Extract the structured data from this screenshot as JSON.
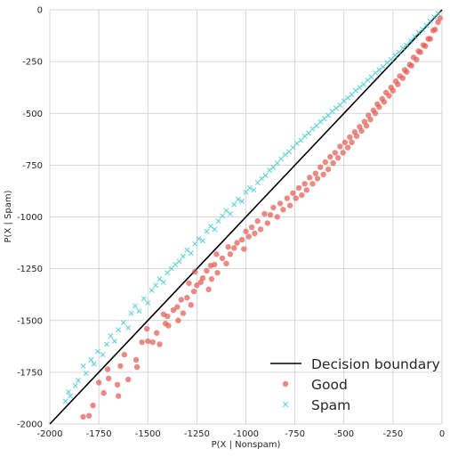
{
  "chart_data": {
    "type": "scatter",
    "title": "",
    "xlabel": "P(X | Nonspam)",
    "ylabel": "P(X | Spam)",
    "xlim": [
      -2000,
      0
    ],
    "ylim": [
      -2000,
      0
    ],
    "x_ticks": [
      -2000,
      -1750,
      -1500,
      -1250,
      -1000,
      -750,
      -500,
      -250,
      0
    ],
    "y_ticks": [
      -2000,
      -1750,
      -1500,
      -1250,
      -1000,
      -750,
      -500,
      -250,
      0
    ],
    "grid": true,
    "legend_position": "lower-right",
    "colors": {
      "good": "#e2584e",
      "spam": "#4cc9d4",
      "boundary": "#000000",
      "grid": "#cccccc"
    },
    "boundary": {
      "name": "Decision boundary",
      "x": [
        -2000,
        0
      ],
      "y": [
        -2000,
        0
      ]
    },
    "series": [
      {
        "name": "Good",
        "marker": "circle",
        "points": [
          [
            -1830,
            -1965
          ],
          [
            -1800,
            -1960
          ],
          [
            -1780,
            -1910
          ],
          [
            -1750,
            -1800
          ],
          [
            -1725,
            -1850
          ],
          [
            -1705,
            -1735
          ],
          [
            -1700,
            -1780
          ],
          [
            -1655,
            -1810
          ],
          [
            -1650,
            -1865
          ],
          [
            -1640,
            -1720
          ],
          [
            -1620,
            -1665
          ],
          [
            -1600,
            -1785
          ],
          [
            -1560,
            -1690
          ],
          [
            -1555,
            -1725
          ],
          [
            -1530,
            -1605
          ],
          [
            -1505,
            -1540
          ],
          [
            -1500,
            -1600
          ],
          [
            -1475,
            -1605
          ],
          [
            -1455,
            -1560
          ],
          [
            -1440,
            -1615
          ],
          [
            -1420,
            -1470
          ],
          [
            -1410,
            -1515
          ],
          [
            -1400,
            -1480
          ],
          [
            -1395,
            -1525
          ],
          [
            -1370,
            -1450
          ],
          [
            -1350,
            -1435
          ],
          [
            -1345,
            -1500
          ],
          [
            -1330,
            -1400
          ],
          [
            -1320,
            -1465
          ],
          [
            -1300,
            -1390
          ],
          [
            -1290,
            -1320
          ],
          [
            -1280,
            -1425
          ],
          [
            -1265,
            -1360
          ],
          [
            -1260,
            -1265
          ],
          [
            -1250,
            -1330
          ],
          [
            -1230,
            -1315
          ],
          [
            -1220,
            -1295
          ],
          [
            -1200,
            -1260
          ],
          [
            -1190,
            -1350
          ],
          [
            -1180,
            -1235
          ],
          [
            -1175,
            -1300
          ],
          [
            -1160,
            -1230
          ],
          [
            -1150,
            -1180
          ],
          [
            -1145,
            -1270
          ],
          [
            -1120,
            -1200
          ],
          [
            -1100,
            -1225
          ],
          [
            -1090,
            -1145
          ],
          [
            -1080,
            -1180
          ],
          [
            -1060,
            -1150
          ],
          [
            -1045,
            -1125
          ],
          [
            -1020,
            -1110
          ],
          [
            -1010,
            -1155
          ],
          [
            -1000,
            -1070
          ],
          [
            -985,
            -1095
          ],
          [
            -970,
            -1050
          ],
          [
            -955,
            -1080
          ],
          [
            -940,
            -1020
          ],
          [
            -925,
            -1060
          ],
          [
            -905,
            -985
          ],
          [
            -890,
            -1030
          ],
          [
            -875,
            -990
          ],
          [
            -860,
            -955
          ],
          [
            -840,
            -1000
          ],
          [
            -825,
            -935
          ],
          [
            -810,
            -965
          ],
          [
            -790,
            -910
          ],
          [
            -775,
            -945
          ],
          [
            -760,
            -885
          ],
          [
            -745,
            -910
          ],
          [
            -730,
            -860
          ],
          [
            -715,
            -895
          ],
          [
            -700,
            -840
          ],
          [
            -690,
            -870
          ],
          [
            -675,
            -810
          ],
          [
            -660,
            -840
          ],
          [
            -645,
            -790
          ],
          [
            -635,
            -815
          ],
          [
            -620,
            -760
          ],
          [
            -605,
            -795
          ],
          [
            -595,
            -735
          ],
          [
            -580,
            -770
          ],
          [
            -570,
            -710
          ],
          [
            -555,
            -740
          ],
          [
            -545,
            -690
          ],
          [
            -530,
            -715
          ],
          [
            -520,
            -660
          ],
          [
            -505,
            -690
          ],
          [
            -495,
            -640
          ],
          [
            -480,
            -665
          ],
          [
            -470,
            -615
          ],
          [
            -460,
            -640
          ],
          [
            -445,
            -590
          ],
          [
            -435,
            -610
          ],
          [
            -420,
            -565
          ],
          [
            -410,
            -585
          ],
          [
            -395,
            -540
          ],
          [
            -385,
            -560
          ],
          [
            -375,
            -510
          ],
          [
            -365,
            -530
          ],
          [
            -350,
            -485
          ],
          [
            -340,
            -500
          ],
          [
            -330,
            -455
          ],
          [
            -320,
            -470
          ],
          [
            -305,
            -430
          ],
          [
            -295,
            -445
          ],
          [
            -285,
            -400
          ],
          [
            -270,
            -415
          ],
          [
            -260,
            -375
          ],
          [
            -250,
            -390
          ],
          [
            -235,
            -345
          ],
          [
            -225,
            -360
          ],
          [
            -215,
            -320
          ],
          [
            -200,
            -330
          ],
          [
            -190,
            -290
          ],
          [
            -180,
            -300
          ],
          [
            -165,
            -265
          ],
          [
            -155,
            -270
          ],
          [
            -145,
            -230
          ],
          [
            -130,
            -240
          ],
          [
            -120,
            -200
          ],
          [
            -110,
            -205
          ],
          [
            -95,
            -170
          ],
          [
            -85,
            -175
          ],
          [
            -70,
            -140
          ],
          [
            -60,
            -140
          ],
          [
            -45,
            -100
          ],
          [
            -35,
            -95
          ],
          [
            -20,
            -60
          ],
          [
            -10,
            -40
          ]
        ]
      },
      {
        "name": "Spam",
        "marker": "x",
        "points": [
          [
            -1920,
            -1890
          ],
          [
            -1905,
            -1845
          ],
          [
            -1895,
            -1865
          ],
          [
            -1870,
            -1815
          ],
          [
            -1855,
            -1790
          ],
          [
            -1830,
            -1720
          ],
          [
            -1815,
            -1755
          ],
          [
            -1790,
            -1690
          ],
          [
            -1775,
            -1710
          ],
          [
            -1755,
            -1650
          ],
          [
            -1730,
            -1665
          ],
          [
            -1710,
            -1615
          ],
          [
            -1690,
            -1575
          ],
          [
            -1670,
            -1600
          ],
          [
            -1650,
            -1545
          ],
          [
            -1625,
            -1510
          ],
          [
            -1600,
            -1535
          ],
          [
            -1585,
            -1465
          ],
          [
            -1565,
            -1430
          ],
          [
            -1545,
            -1455
          ],
          [
            -1520,
            -1395
          ],
          [
            -1500,
            -1415
          ],
          [
            -1480,
            -1355
          ],
          [
            -1460,
            -1330
          ],
          [
            -1440,
            -1300
          ],
          [
            -1420,
            -1315
          ],
          [
            -1400,
            -1270
          ],
          [
            -1380,
            -1250
          ],
          [
            -1360,
            -1230
          ],
          [
            -1340,
            -1215
          ],
          [
            -1320,
            -1190
          ],
          [
            -1300,
            -1160
          ],
          [
            -1280,
            -1175
          ],
          [
            -1260,
            -1130
          ],
          [
            -1240,
            -1105
          ],
          [
            -1220,
            -1115
          ],
          [
            -1200,
            -1070
          ],
          [
            -1180,
            -1045
          ],
          [
            -1160,
            -1060
          ],
          [
            -1140,
            -1020
          ],
          [
            -1120,
            -995
          ],
          [
            -1100,
            -970
          ],
          [
            -1080,
            -985
          ],
          [
            -1060,
            -940
          ],
          [
            -1040,
            -915
          ],
          [
            -1020,
            -925
          ],
          [
            -1000,
            -880
          ],
          [
            -980,
            -860
          ],
          [
            -960,
            -870
          ],
          [
            -940,
            -835
          ],
          [
            -920,
            -815
          ],
          [
            -900,
            -800
          ],
          [
            -880,
            -775
          ],
          [
            -860,
            -760
          ],
          [
            -840,
            -740
          ],
          [
            -820,
            -720
          ],
          [
            -800,
            -700
          ],
          [
            -780,
            -685
          ],
          [
            -760,
            -665
          ],
          [
            -740,
            -645
          ],
          [
            -720,
            -630
          ],
          [
            -700,
            -610
          ],
          [
            -680,
            -595
          ],
          [
            -660,
            -575
          ],
          [
            -640,
            -560
          ],
          [
            -620,
            -540
          ],
          [
            -600,
            -525
          ],
          [
            -580,
            -510
          ],
          [
            -560,
            -490
          ],
          [
            -540,
            -475
          ],
          [
            -520,
            -460
          ],
          [
            -500,
            -440
          ],
          [
            -480,
            -425
          ],
          [
            -460,
            -410
          ],
          [
            -440,
            -390
          ],
          [
            -420,
            -375
          ],
          [
            -400,
            -360
          ],
          [
            -380,
            -340
          ],
          [
            -360,
            -325
          ],
          [
            -340,
            -305
          ],
          [
            -320,
            -290
          ],
          [
            -300,
            -275
          ],
          [
            -280,
            -255
          ],
          [
            -260,
            -240
          ],
          [
            -240,
            -220
          ],
          [
            -220,
            -205
          ],
          [
            -200,
            -185
          ],
          [
            -180,
            -170
          ],
          [
            -160,
            -150
          ],
          [
            -140,
            -130
          ],
          [
            -120,
            -110
          ],
          [
            -100,
            -95
          ],
          [
            -80,
            -75
          ],
          [
            -60,
            -55
          ],
          [
            -40,
            -35
          ],
          [
            -20,
            -18
          ]
        ]
      }
    ]
  }
}
